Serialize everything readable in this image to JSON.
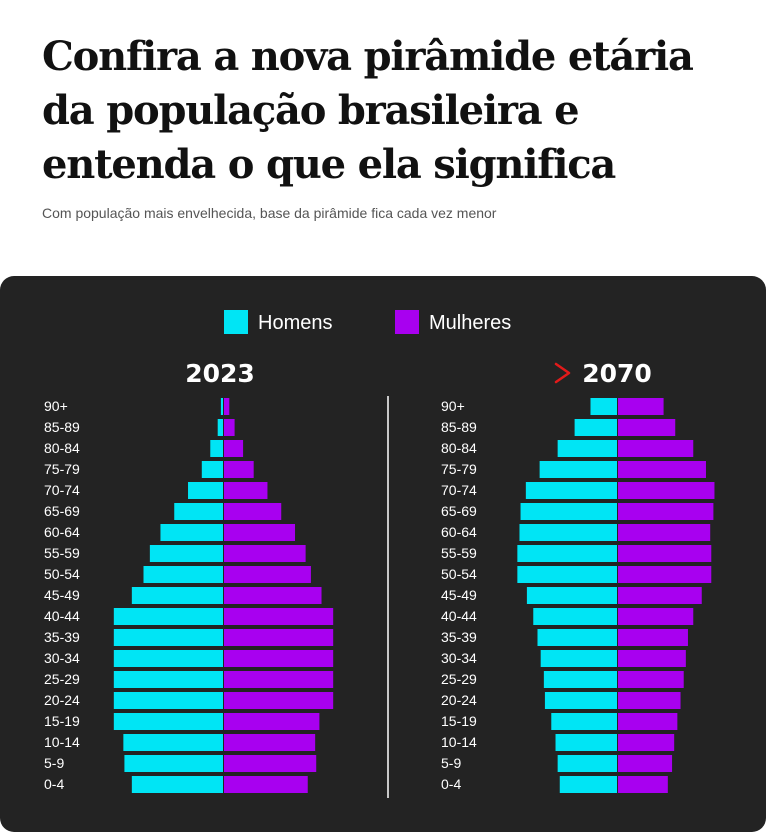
{
  "headline": "Confira a nova pirâmide etária da população brasileira e entenda o que ela significa",
  "subtitle": "Com população mais envelhecida, base da pirâmide fica cada vez menor",
  "colors": {
    "men": "#00e5f5",
    "women": "#a800f0",
    "arrow": "#e31a1a",
    "background": "#232323"
  },
  "chart_data": {
    "type": "population-pyramid",
    "legend": {
      "men": "Homens",
      "women": "Mulheres"
    },
    "age_groups": [
      "90+",
      "85-89",
      "80-84",
      "75-79",
      "70-74",
      "65-69",
      "60-64",
      "55-59",
      "50-54",
      "45-49",
      "40-44",
      "35-39",
      "30-34",
      "25-29",
      "20-24",
      "15-19",
      "10-14",
      "5-9",
      "0-4"
    ],
    "pyramids": [
      {
        "year": "2023",
        "men": [
          0.2,
          0.5,
          1.2,
          2.0,
          3.3,
          4.6,
          5.9,
          6.9,
          7.5,
          8.6,
          10.3,
          10.3,
          10.3,
          10.3,
          10.3,
          10.3,
          9.4,
          9.3,
          8.6
        ],
        "women": [
          0.5,
          1.0,
          1.8,
          2.8,
          4.1,
          5.4,
          6.7,
          7.7,
          8.2,
          9.2,
          10.3,
          10.3,
          10.3,
          10.3,
          10.3,
          9.0,
          8.6,
          8.7,
          7.9
        ]
      },
      {
        "year": "2070",
        "men": [
          2.5,
          4.0,
          5.6,
          7.3,
          8.6,
          9.1,
          9.2,
          9.4,
          9.4,
          8.5,
          7.9,
          7.5,
          7.2,
          6.9,
          6.8,
          6.2,
          5.8,
          5.6,
          5.4
        ],
        "women": [
          4.3,
          5.4,
          7.1,
          8.3,
          9.1,
          9.0,
          8.7,
          8.8,
          8.8,
          7.9,
          7.1,
          6.6,
          6.4,
          6.2,
          5.9,
          5.6,
          5.3,
          5.1,
          4.7
        ]
      }
    ]
  }
}
